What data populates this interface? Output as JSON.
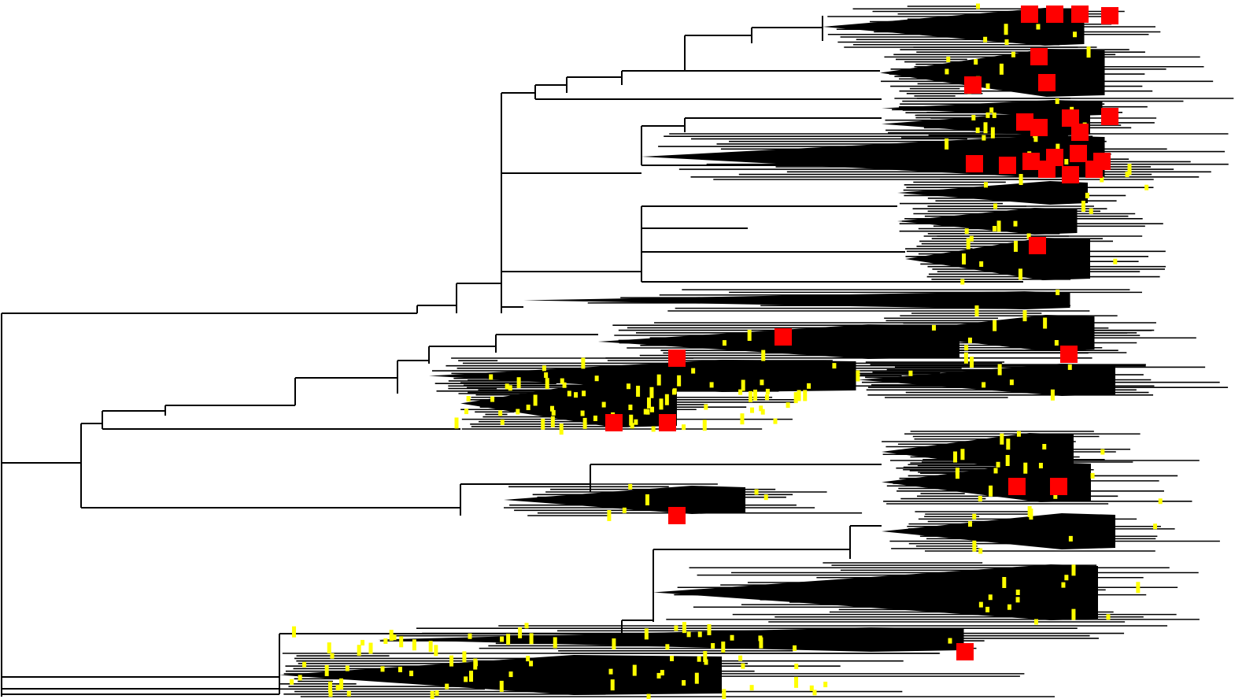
{
  "diagram": {
    "type": "phylogenetic-tree",
    "colors": {
      "background": "#ffffff",
      "branch": "#000000",
      "tip_marker": "#ffff00",
      "node_marker": "#ff0000"
    },
    "labels": []
  }
}
